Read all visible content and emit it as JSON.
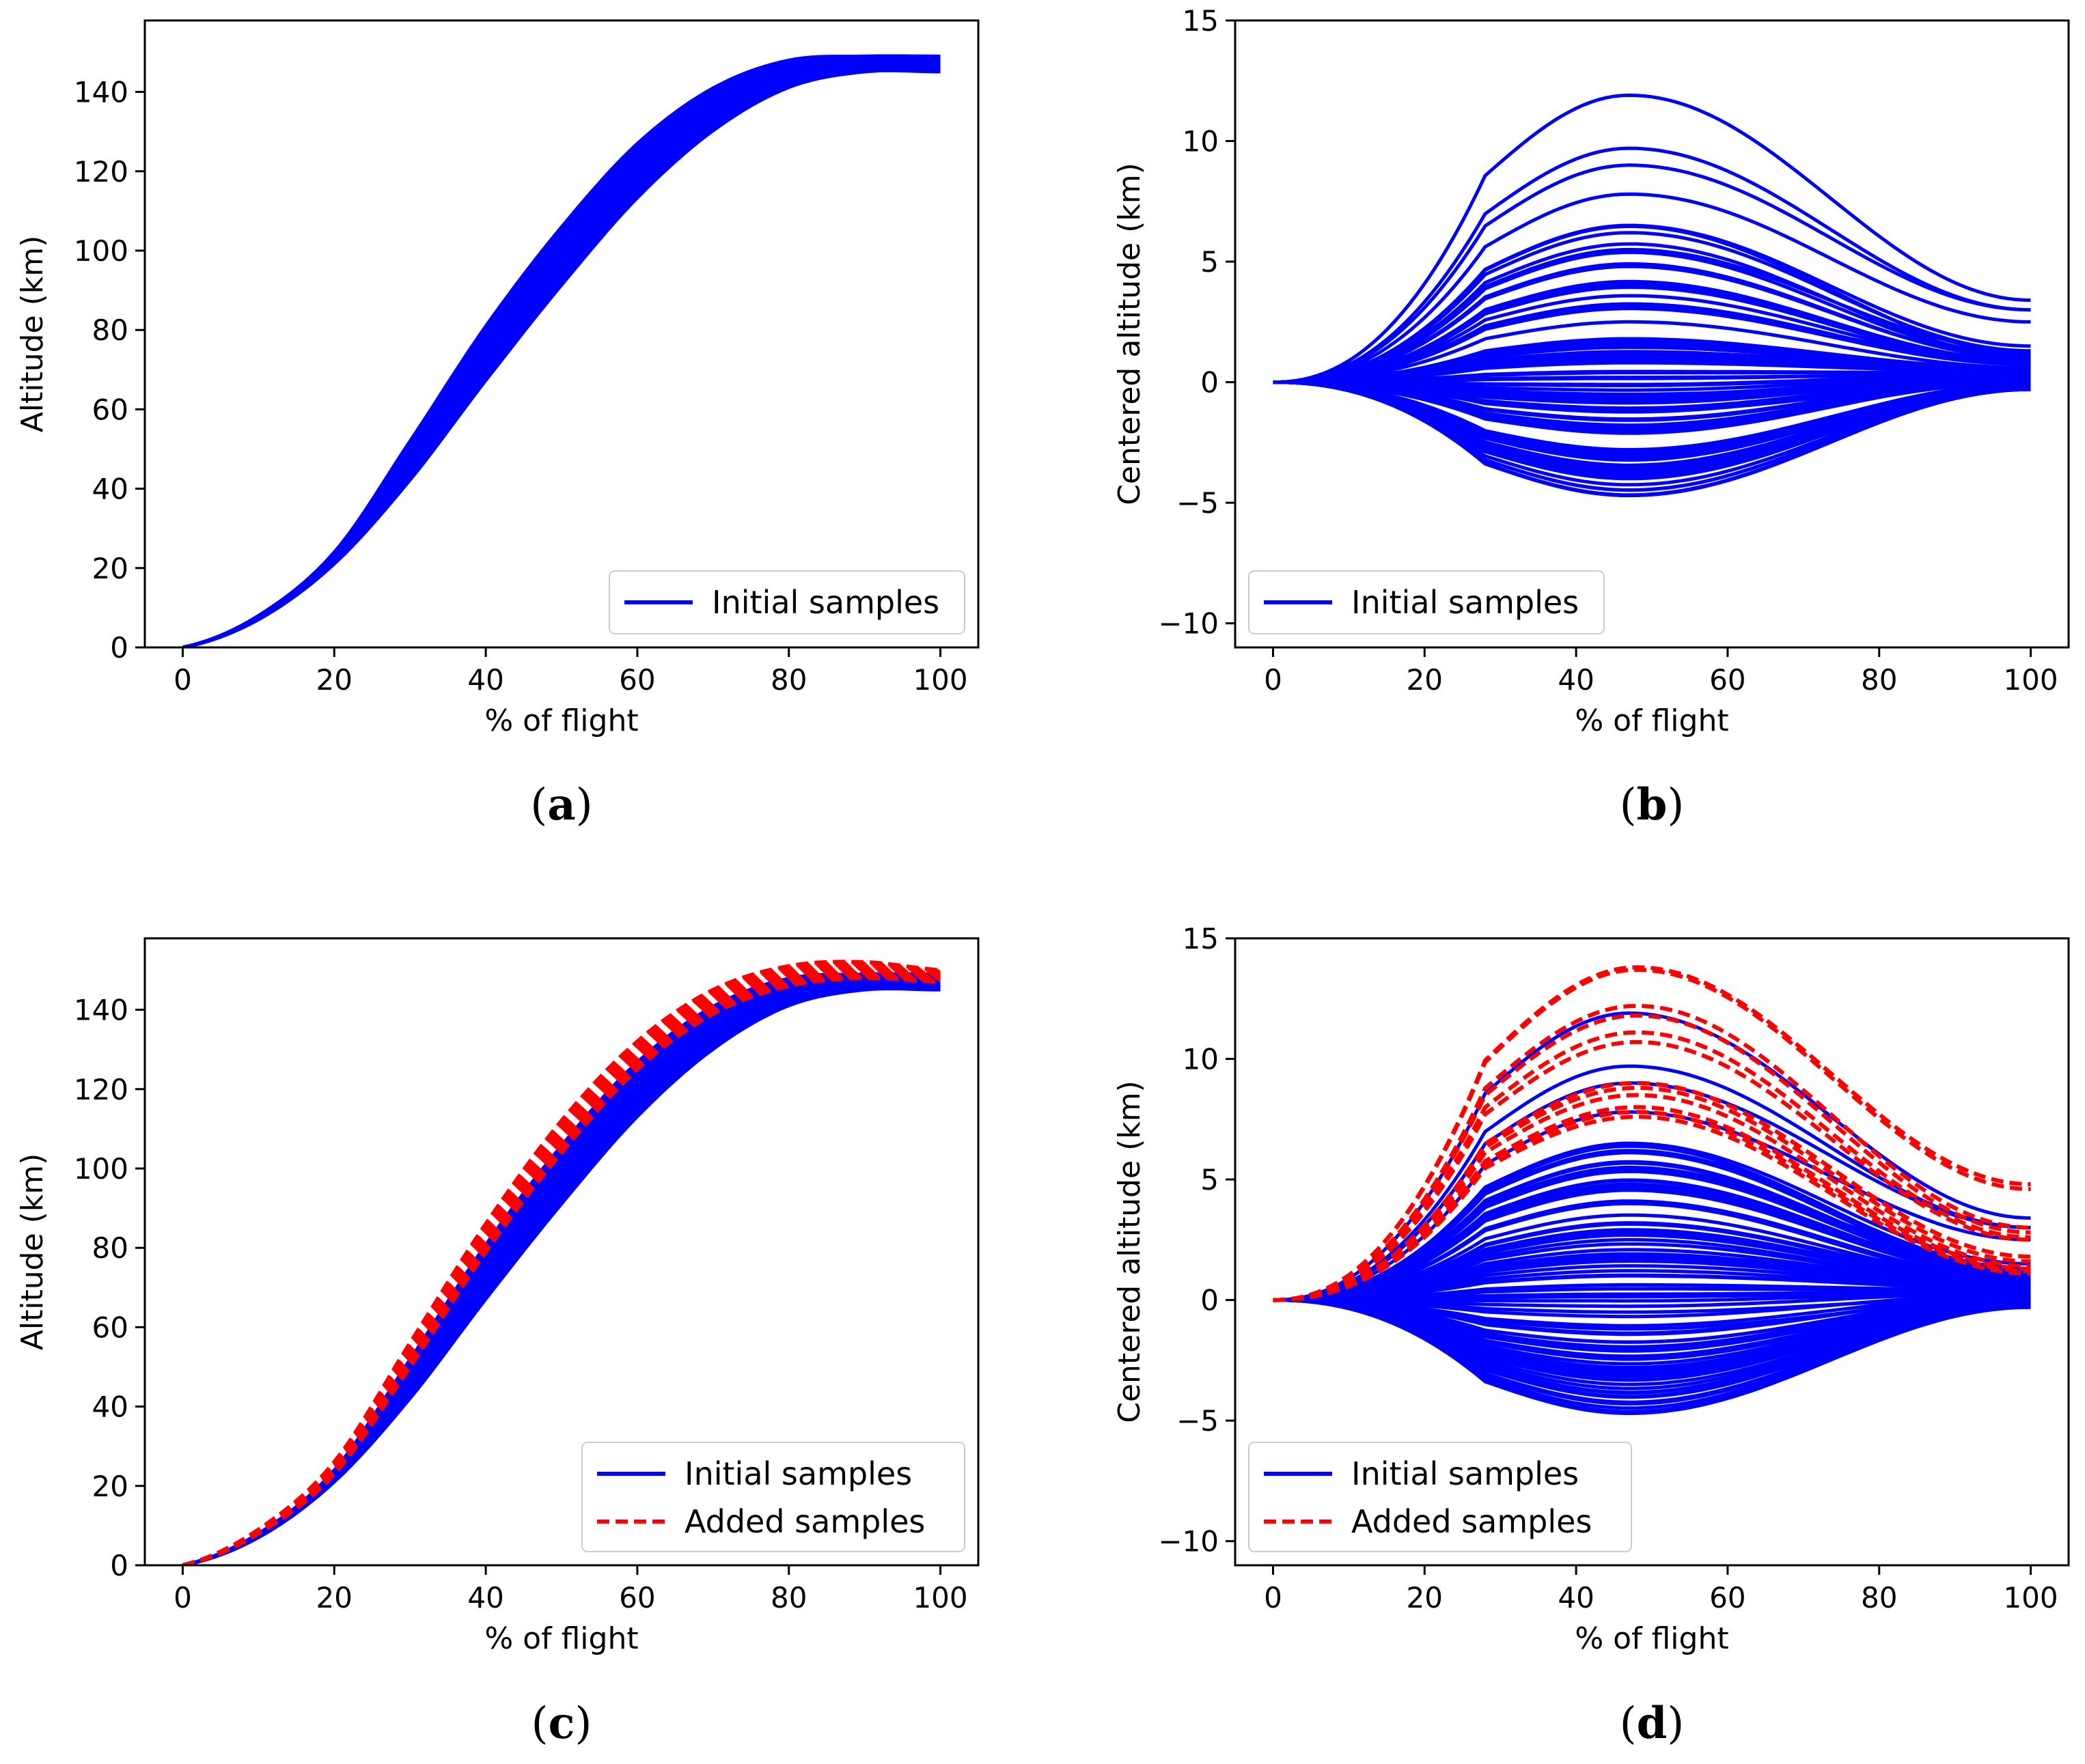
{
  "chart_data": [
    {
      "id": "a",
      "type": "line",
      "panel_label": "a",
      "xlabel": "% of flight",
      "ylabel": "Altitude (km)",
      "xlim": [
        -5,
        105
      ],
      "ylim": [
        0,
        158
      ],
      "xticks": [
        0,
        20,
        40,
        60,
        80,
        100
      ],
      "yticks": [
        0,
        20,
        40,
        60,
        80,
        100,
        120,
        140
      ],
      "xtick_labels": [
        "0",
        "20",
        "40",
        "60",
        "80",
        "100"
      ],
      "ytick_labels": [
        "0",
        "20",
        "40",
        "60",
        "80",
        "100",
        "120",
        "140"
      ],
      "legend": {
        "position": "lower-right",
        "entries": [
          {
            "label": "Initial samples",
            "color": "#0000ff",
            "style": "solid"
          }
        ]
      },
      "series": [
        {
          "name": "Initial samples",
          "color": "#0000ff",
          "style": "solid",
          "count": 60,
          "x": [
            0,
            10,
            20,
            30,
            40,
            50,
            60,
            70,
            80,
            90,
            100
          ],
          "y_low": [
            0,
            7,
            21,
            42,
            67,
            91,
            113,
            130,
            141,
            145,
            145
          ],
          "y_high": [
            0,
            8,
            24,
            52,
            81,
            106,
            127,
            141,
            148,
            149,
            149
          ]
        }
      ]
    },
    {
      "id": "b",
      "type": "line",
      "panel_label": "b",
      "xlabel": "% of flight",
      "ylabel": "Centered altitude (km)",
      "xlim": [
        -5,
        105
      ],
      "ylim": [
        -11,
        15
      ],
      "xticks": [
        0,
        20,
        40,
        60,
        80,
        100
      ],
      "yticks": [
        -10,
        -5,
        0,
        5,
        10,
        15
      ],
      "xtick_labels": [
        "0",
        "20",
        "40",
        "60",
        "80",
        "100"
      ],
      "ytick_labels": [
        "−10",
        "−5",
        "0",
        "5",
        "10",
        "15"
      ],
      "legend": {
        "position": "lower-left",
        "entries": [
          {
            "label": "Initial samples",
            "color": "#0000ff",
            "style": "solid"
          }
        ]
      },
      "series": [
        {
          "name": "Initial samples",
          "color": "#0000ff",
          "style": "solid",
          "count": 90,
          "x": [
            0,
            28,
            47,
            100
          ],
          "peak_values": [
            11.9,
            9.7,
            9.0,
            7.8,
            6.5,
            6.2,
            5.5,
            4.8,
            4.0,
            3.2,
            2.5,
            1.8,
            1.0,
            0.2,
            -0.5,
            -1.2,
            -2.0,
            -2.8,
            -3.5,
            -4.0,
            -4.7
          ],
          "end_values": [
            3.4,
            3.0,
            2.5,
            1.5,
            1.3,
            1.0,
            0.8,
            0.6,
            0.5,
            0.3,
            0.1,
            0.0,
            -0.1,
            -0.2,
            -0.3
          ]
        }
      ]
    },
    {
      "id": "c",
      "type": "line",
      "panel_label": "c",
      "xlabel": "% of flight",
      "ylabel": "Altitude (km)",
      "xlim": [
        -5,
        105
      ],
      "ylim": [
        0,
        158
      ],
      "xticks": [
        0,
        20,
        40,
        60,
        80,
        100
      ],
      "yticks": [
        0,
        20,
        40,
        60,
        80,
        100,
        120,
        140
      ],
      "xtick_labels": [
        "0",
        "20",
        "40",
        "60",
        "80",
        "100"
      ],
      "ytick_labels": [
        "0",
        "20",
        "40",
        "60",
        "80",
        "100",
        "120",
        "140"
      ],
      "legend": {
        "position": "lower-right",
        "entries": [
          {
            "label": "Initial samples",
            "color": "#0000ff",
            "style": "solid"
          },
          {
            "label": "Added samples",
            "color": "#ff0000",
            "style": "dashed"
          }
        ]
      },
      "series": [
        {
          "name": "Initial samples",
          "color": "#0000ff",
          "style": "solid",
          "count": 60,
          "x": [
            0,
            10,
            20,
            30,
            40,
            50,
            60,
            70,
            80,
            90,
            100
          ],
          "y_low": [
            0,
            7,
            21,
            42,
            67,
            91,
            113,
            130,
            141,
            145,
            145
          ],
          "y_high": [
            0,
            8,
            24,
            52,
            81,
            106,
            127,
            141,
            148,
            149,
            149
          ]
        },
        {
          "name": "Added samples",
          "color": "#ff0000",
          "style": "dashed",
          "count": 12,
          "x": [
            0,
            10,
            20,
            30,
            40,
            50,
            60,
            70,
            80,
            90,
            100
          ],
          "y_low": [
            0,
            8,
            23,
            50,
            79,
            104,
            125,
            139,
            146,
            148,
            147
          ],
          "y_high": [
            0,
            9,
            26,
            56,
            86,
            112,
            132,
            145,
            151,
            152,
            150
          ]
        }
      ]
    },
    {
      "id": "d",
      "type": "line",
      "panel_label": "d",
      "xlabel": "% of flight",
      "ylabel": "Centered altitude (km)",
      "xlim": [
        -5,
        105
      ],
      "ylim": [
        -11,
        15
      ],
      "xticks": [
        0,
        20,
        40,
        60,
        80,
        100
      ],
      "yticks": [
        -10,
        -5,
        0,
        5,
        10,
        15
      ],
      "xtick_labels": [
        "0",
        "20",
        "40",
        "60",
        "80",
        "100"
      ],
      "ytick_labels": [
        "−10",
        "−5",
        "0",
        "5",
        "10",
        "15"
      ],
      "legend": {
        "position": "lower-left",
        "entries": [
          {
            "label": "Initial samples",
            "color": "#0000ff",
            "style": "solid"
          },
          {
            "label": "Added samples",
            "color": "#ff0000",
            "style": "dashed"
          }
        ]
      },
      "series": [
        {
          "name": "Initial samples",
          "color": "#0000ff",
          "style": "solid",
          "count": 90,
          "x": [
            0,
            28,
            47,
            100
          ],
          "peak_values": [
            11.9,
            9.7,
            9.0,
            7.8,
            6.5,
            6.2,
            5.5,
            4.8,
            4.0,
            3.2,
            2.5,
            1.8,
            1.0,
            0.2,
            -0.5,
            -1.2,
            -2.0,
            -2.8,
            -3.5,
            -4.0,
            -4.7
          ],
          "end_values": [
            3.4,
            3.0,
            2.5,
            1.5,
            1.3,
            1.0,
            0.8,
            0.6,
            0.5,
            0.3,
            0.1,
            0.0,
            -0.1,
            -0.2,
            -0.3
          ]
        },
        {
          "name": "Added samples",
          "color": "#ff0000",
          "style": "dashed",
          "count": 12,
          "x": [
            0,
            28,
            48,
            100
          ],
          "peak_values": [
            13.8,
            13.7,
            12.2,
            11.8,
            11.1,
            10.7,
            9.0,
            8.8,
            8.5,
            8.0,
            7.8,
            7.6
          ],
          "end_values": [
            4.8,
            4.6,
            3.0,
            2.8,
            2.6,
            2.5,
            1.8,
            1.6,
            1.4,
            1.3,
            1.2,
            1.1
          ]
        }
      ]
    }
  ]
}
